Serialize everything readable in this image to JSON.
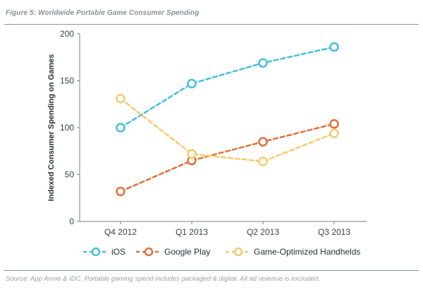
{
  "figure": {
    "title": "Figure 5:  Worldwide Portable Game Consumer Spending",
    "source": "Source: App Annie & IDC. Portable gaming spend includes packaged & digital. All ad revenue is excluded."
  },
  "colors": {
    "ios": "#45bfdc",
    "google_play": "#e0703c",
    "handhelds": "#f5cb6e"
  },
  "chart_data": {
    "type": "line",
    "title": "",
    "xlabel": "",
    "ylabel": "Indexed Consumer Spending on Games",
    "categories": [
      "Q4 2012",
      "Q1 2013",
      "Q2 2013",
      "Q3 2013"
    ],
    "ylim": [
      0,
      200
    ],
    "yticks": [
      0,
      50,
      100,
      150,
      200
    ],
    "grid": false,
    "legend": "bottom",
    "series": [
      {
        "name": "iOS",
        "key": "ios",
        "values": [
          100,
          147,
          169,
          186
        ]
      },
      {
        "name": "Google Play",
        "key": "google_play",
        "values": [
          32,
          65,
          85,
          104
        ]
      },
      {
        "name": "Game-Optimized Handhelds",
        "key": "handhelds",
        "values": [
          131,
          72,
          64,
          94
        ]
      }
    ]
  }
}
